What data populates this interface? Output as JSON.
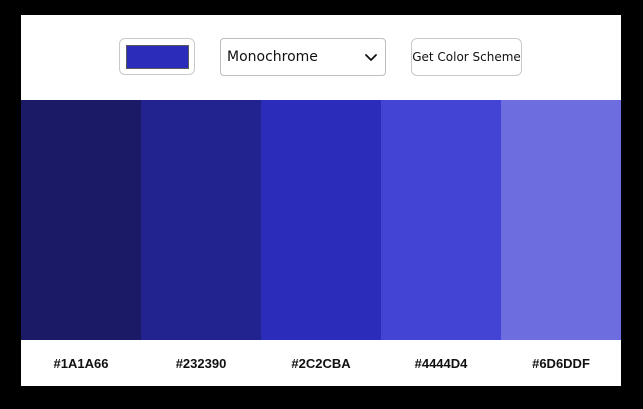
{
  "toolbar": {
    "seed_color": "#2C2CBA",
    "mode_select": {
      "selected": "Monochrome"
    },
    "get_scheme_label": "Get Color Scheme"
  },
  "palette": {
    "colors": [
      {
        "hex": "#1A1A66"
      },
      {
        "hex": "#232390"
      },
      {
        "hex": "#2C2CBA"
      },
      {
        "hex": "#4444D4"
      },
      {
        "hex": "#6D6DDF"
      }
    ]
  }
}
